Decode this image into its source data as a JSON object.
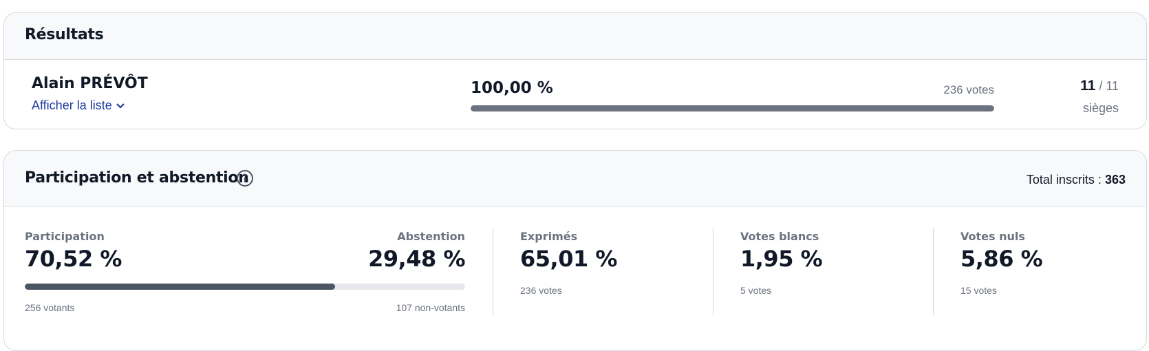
{
  "results": {
    "title": "Résultats",
    "candidates": [
      {
        "name": "Alain PRÉVÔT",
        "toggle": "Afficher la liste",
        "share": {
          "value": 100,
          "label": "100,00 %"
        },
        "votes": "236 votes",
        "seats": "11",
        "seats_total": "/ 11",
        "seats_unit": "sièges"
      }
    ]
  },
  "participation": {
    "title": "Participation et abstention",
    "total_label": "Total inscrits :",
    "total": "363",
    "participation": {
      "label": "Participation",
      "rate": {
        "value": 70.52,
        "label": "70,52 %"
      },
      "count": "256 votants"
    },
    "abstention": {
      "label": "Abstention",
      "rate": "29,48 %",
      "count": "107 non-votants"
    },
    "stats": [
      {
        "label": "Exprimés",
        "rate": "65,01 %",
        "count": "236 votes"
      },
      {
        "label": "Votes blancs",
        "rate": "1,95 %",
        "count": "5 votes"
      },
      {
        "label": "Votes nuls",
        "rate": "5,86 %",
        "count": "15 votes"
      }
    ]
  }
}
